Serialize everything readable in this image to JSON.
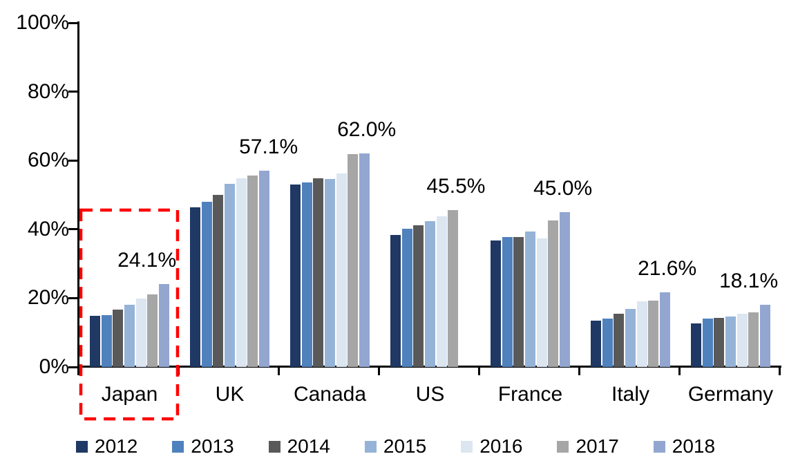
{
  "chart_data": {
    "type": "bar",
    "title": "",
    "xlabel": "",
    "ylabel": "",
    "ylim": [
      0,
      100
    ],
    "grid": false,
    "legend_position": "bottom",
    "y_ticks": [
      "0%",
      "20%",
      "40%",
      "60%",
      "80%",
      "100%"
    ],
    "categories": [
      "Japan",
      "UK",
      "Canada",
      "US",
      "France",
      "Italy",
      "Germany"
    ],
    "series": [
      {
        "name": "2012",
        "color": "#1F3864",
        "values": [
          14.9,
          46.4,
          53.0,
          38.4,
          36.7,
          13.4,
          12.6
        ]
      },
      {
        "name": "2013",
        "color": "#4F81BD",
        "values": [
          15.0,
          48.0,
          53.6,
          40.2,
          37.8,
          14.0,
          14.0
        ]
      },
      {
        "name": "2014",
        "color": "#595959",
        "values": [
          16.7,
          50.0,
          54.9,
          41.2,
          37.8,
          15.4,
          14.2
        ]
      },
      {
        "name": "2015",
        "color": "#95B3D7",
        "values": [
          18.0,
          53.2,
          54.7,
          42.3,
          39.4,
          16.8,
          14.7
        ]
      },
      {
        "name": "2016",
        "color": "#DCE6F1",
        "values": [
          19.8,
          54.8,
          56.3,
          43.7,
          37.4,
          19.0,
          15.4
        ]
      },
      {
        "name": "2017",
        "color": "#A6A6A6",
        "values": [
          21.0,
          55.7,
          61.8,
          45.5,
          42.5,
          19.2,
          15.9
        ]
      },
      {
        "name": "2018",
        "color": "#93A6D0",
        "values": [
          24.1,
          57.1,
          62.0,
          null,
          45.0,
          21.6,
          18.1
        ]
      }
    ],
    "data_labels": [
      "24.1%",
      "57.1%",
      "62.0%",
      "45.5%",
      "45.0%",
      "21.6%",
      "18.1%"
    ],
    "highlight": {
      "category": "Japan",
      "style": "red-dashed-box",
      "color": "#FF0000"
    },
    "axis_color": "#000000",
    "text_color": "#000000"
  }
}
